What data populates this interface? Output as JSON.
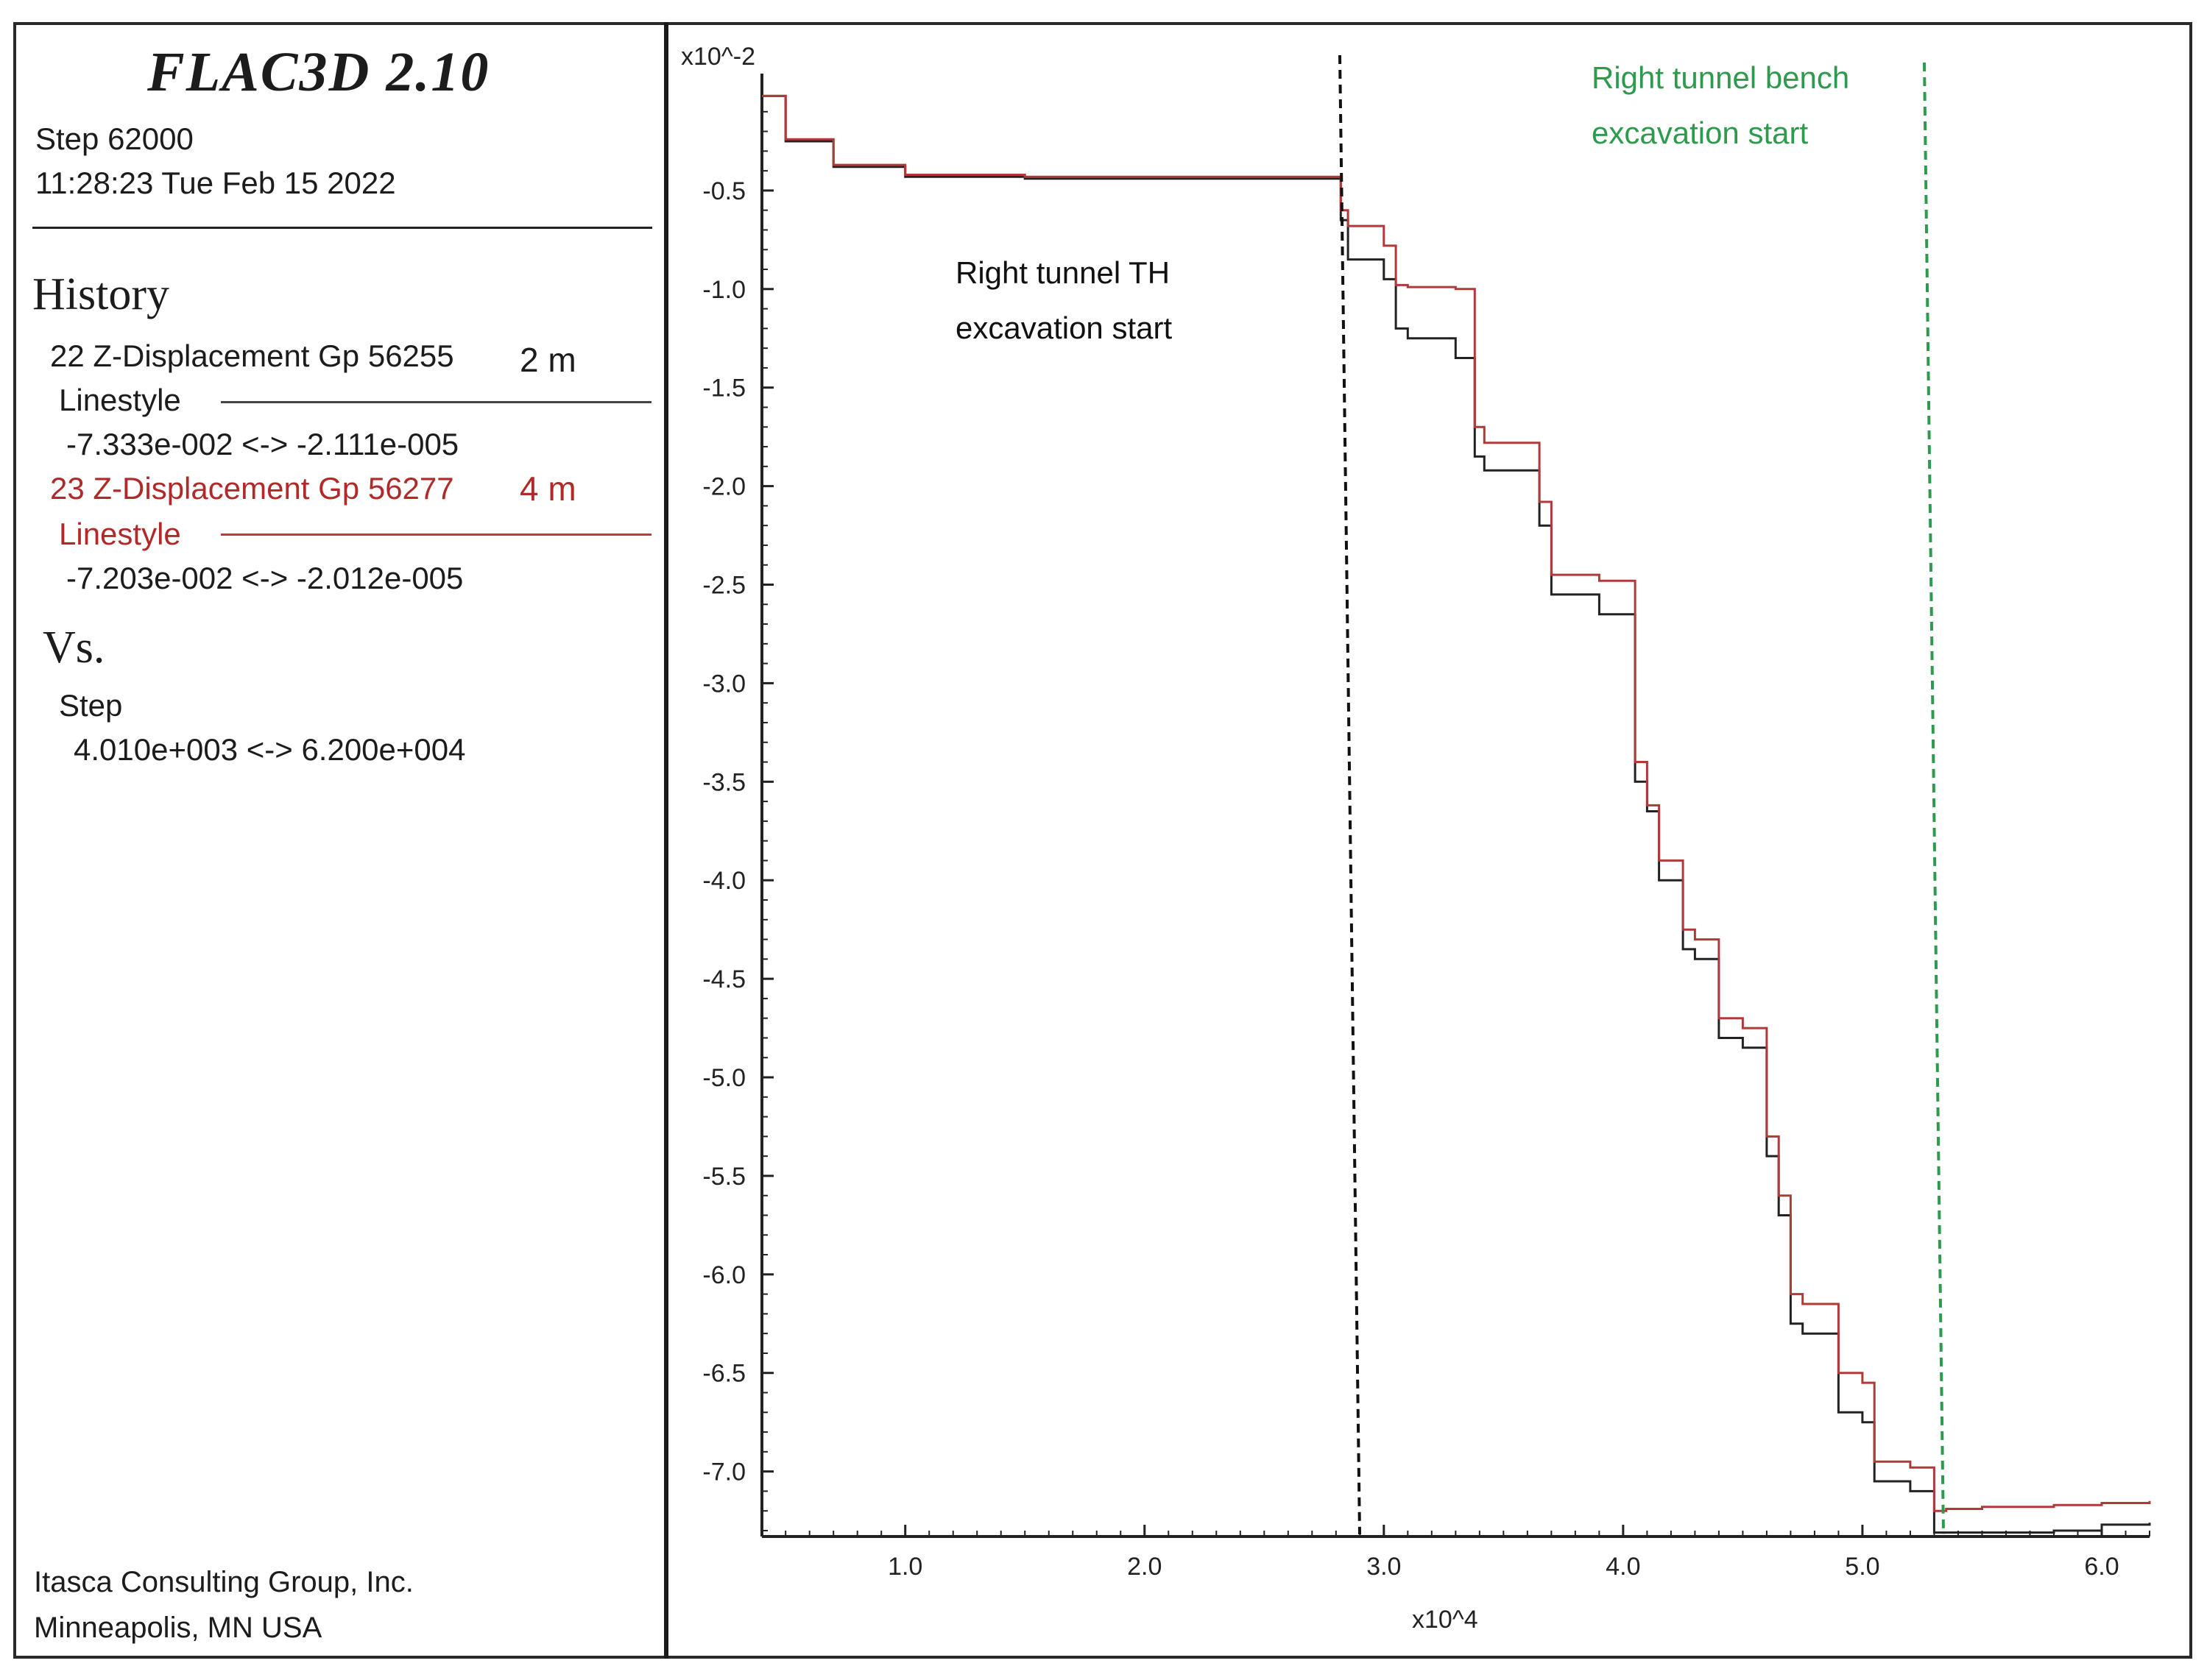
{
  "header": {
    "title": "FLAC3D 2.10",
    "step": "Step 62000",
    "timestamp": "11:28:23 Tue Feb 15 2022"
  },
  "legend": {
    "history_heading": "History",
    "series1": {
      "label": "22 Z-Displacement Gp 56255",
      "note": "2 m",
      "linestyle": "Linestyle",
      "range": "-7.333e-002 <-> -2.111e-005",
      "color": "#222222"
    },
    "series2": {
      "label": "23 Z-Displacement Gp 56277",
      "note": "4 m",
      "linestyle": "Linestyle",
      "range": "-7.203e-002 <-> -2.012e-005",
      "color": "#b03a3a"
    },
    "vs_heading": "Vs.",
    "x_variable": "Step",
    "x_range": "4.010e+003 <->  6.200e+004"
  },
  "footer": {
    "company": "Itasca Consulting Group, Inc.",
    "city": "Minneapolis, MN  USA"
  },
  "chart_data": {
    "type": "line",
    "y_multiplier_label": "x10^-2",
    "x_multiplier_label": "x10^4",
    "xlim": [
      0.401,
      6.2
    ],
    "ylim": [
      -7.33,
      0.0
    ],
    "x_ticks": [
      1.0,
      2.0,
      3.0,
      4.0,
      5.0,
      6.0
    ],
    "x_tick_labels": [
      "1.0",
      "2.0",
      "3.0",
      "4.0",
      "5.0",
      "6.0"
    ],
    "y_ticks": [
      -0.5,
      -1.0,
      -1.5,
      -2.0,
      -2.5,
      -3.0,
      -3.5,
      -4.0,
      -4.5,
      -5.0,
      -5.5,
      -6.0,
      -6.5,
      -7.0
    ],
    "y_tick_labels": [
      "-0.5",
      "-1.0",
      "-1.5",
      "-2.0",
      "-2.5",
      "-3.0",
      "-3.5",
      "-4.0",
      "-4.5",
      "-5.0",
      "-5.5",
      "-6.0",
      "-6.5",
      "-7.0"
    ],
    "series": [
      {
        "name": "22 Z-Displacement Gp 56255",
        "color": "#222222",
        "x": [
          0.401,
          0.5,
          0.7,
          1.0,
          1.5,
          2.0,
          2.5,
          2.8,
          2.82,
          2.85,
          3.0,
          3.05,
          3.1,
          3.3,
          3.38,
          3.42,
          3.65,
          3.7,
          3.9,
          4.0,
          4.05,
          4.1,
          4.15,
          4.25,
          4.3,
          4.4,
          4.5,
          4.6,
          4.65,
          4.7,
          4.75,
          4.9,
          5.0,
          5.05,
          5.2,
          5.3,
          5.35,
          5.5,
          5.8,
          6.0,
          6.2
        ],
        "y": [
          -0.02,
          -0.25,
          -0.38,
          -0.43,
          -0.44,
          -0.44,
          -0.44,
          -0.44,
          -0.65,
          -0.85,
          -0.95,
          -1.2,
          -1.25,
          -1.35,
          -1.85,
          -1.92,
          -2.2,
          -2.55,
          -2.65,
          -2.65,
          -3.5,
          -3.65,
          -4.0,
          -4.35,
          -4.4,
          -4.8,
          -4.85,
          -5.4,
          -5.7,
          -6.25,
          -6.3,
          -6.7,
          -6.75,
          -7.05,
          -7.1,
          -7.31,
          -7.31,
          -7.31,
          -7.3,
          -7.27,
          -7.26
        ]
      },
      {
        "name": "23 Z-Displacement Gp 56277",
        "color": "#b03a3a",
        "x": [
          0.401,
          0.5,
          0.7,
          1.0,
          1.5,
          2.0,
          2.5,
          2.8,
          2.82,
          2.85,
          3.0,
          3.05,
          3.1,
          3.3,
          3.38,
          3.42,
          3.65,
          3.7,
          3.9,
          4.0,
          4.05,
          4.1,
          4.15,
          4.25,
          4.3,
          4.4,
          4.5,
          4.6,
          4.65,
          4.7,
          4.75,
          4.9,
          5.0,
          5.05,
          5.2,
          5.3,
          5.35,
          5.5,
          5.8,
          6.0,
          6.2
        ],
        "y": [
          -0.02,
          -0.24,
          -0.37,
          -0.42,
          -0.43,
          -0.43,
          -0.43,
          -0.43,
          -0.6,
          -0.68,
          -0.78,
          -0.98,
          -0.99,
          -1.0,
          -1.7,
          -1.78,
          -2.08,
          -2.45,
          -2.48,
          -2.48,
          -3.4,
          -3.62,
          -3.9,
          -4.25,
          -4.3,
          -4.7,
          -4.75,
          -5.3,
          -5.6,
          -6.1,
          -6.15,
          -6.5,
          -6.55,
          -6.95,
          -6.98,
          -7.2,
          -7.19,
          -7.18,
          -7.17,
          -7.16,
          -7.15
        ]
      }
    ],
    "annotations": [
      {
        "text_lines": [
          "Right tunnel TH",
          "excavation start"
        ],
        "x": 2.88,
        "color": "#111111"
      },
      {
        "text_lines": [
          "Right tunnel bench",
          "excavation start"
        ],
        "x": 5.32,
        "color": "#2e9a4e"
      }
    ]
  }
}
